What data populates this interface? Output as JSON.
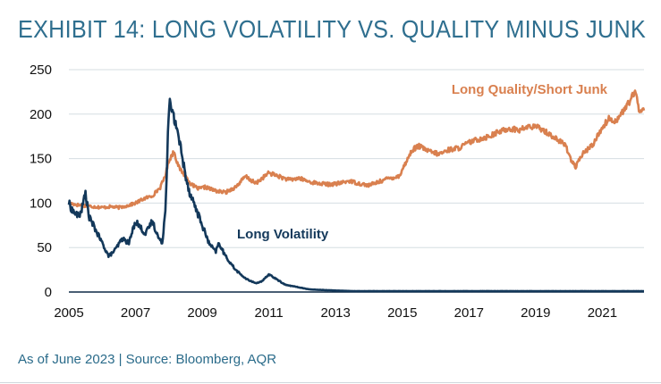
{
  "exhibit": {
    "title": "EXHIBIT 14: LONG VOLATILITY VS. QUALITY MINUS JUNK",
    "source_note": "As of June 2023 | Source: Bloomberg, AQR"
  },
  "colors": {
    "long_quality": "#d9804f",
    "long_volatility": "#13385a",
    "grid": "#d6dde2",
    "axis": "#0e2a47",
    "title": "#2f6f8f"
  },
  "chart_data": {
    "type": "line",
    "title": "EXHIBIT 14: LONG VOLATILITY VS. QUALITY MINUS JUNK",
    "xlabel": "",
    "ylabel": "",
    "xlim": [
      2005,
      2022.25
    ],
    "ylim": [
      0,
      250
    ],
    "y_ticks": [
      "0",
      "50",
      "100",
      "150",
      "200",
      "250"
    ],
    "x_ticks": [
      "2005",
      "2007",
      "2009",
      "2011",
      "2013",
      "2015",
      "2017",
      "2019",
      "2021"
    ],
    "grid": "horizontal",
    "legend": "inline labels",
    "series": [
      {
        "name": "Long Quality/Short Junk",
        "x": [
          2005,
          2005.25,
          2005.5,
          2005.75,
          2006,
          2006.25,
          2006.5,
          2006.75,
          2007,
          2007.25,
          2007.5,
          2007.75,
          2007.9,
          2008,
          2008.15,
          2008.3,
          2008.5,
          2008.7,
          2008.9,
          2009.1,
          2009.3,
          2009.5,
          2009.7,
          2010,
          2010.3,
          2010.6,
          2010.8,
          2011,
          2011.3,
          2011.6,
          2011.9,
          2012.2,
          2012.5,
          2012.8,
          2013.1,
          2013.4,
          2013.7,
          2014,
          2014.3,
          2014.6,
          2014.9,
          2015.1,
          2015.3,
          2015.5,
          2015.8,
          2016.1,
          2016.4,
          2016.7,
          2017,
          2017.3,
          2017.6,
          2017.9,
          2018.2,
          2018.5,
          2018.8,
          2019.1,
          2019.4,
          2019.7,
          2019.9,
          2020.05,
          2020.2,
          2020.4,
          2020.7,
          2021,
          2021.2,
          2021.4,
          2021.6,
          2021.75,
          2021.9,
          2022,
          2022.1,
          2022.25
        ],
        "values": [
          100,
          98,
          97,
          96,
          95,
          96,
          95,
          97,
          100,
          105,
          108,
          118,
          132,
          148,
          158,
          140,
          130,
          120,
          116,
          118,
          115,
          113,
          112,
          118,
          130,
          122,
          128,
          134,
          130,
          126,
          128,
          124,
          122,
          121,
          122,
          125,
          122,
          120,
          124,
          128,
          130,
          145,
          160,
          164,
          158,
          155,
          160,
          162,
          168,
          172,
          175,
          180,
          184,
          182,
          186,
          185,
          178,
          170,
          165,
          150,
          140,
          155,
          165,
          185,
          195,
          192,
          202,
          210,
          220,
          224,
          205,
          205
        ]
      },
      {
        "name": "Long Volatility",
        "x": [
          2005,
          2005.1,
          2005.2,
          2005.3,
          2005.4,
          2005.5,
          2005.6,
          2005.8,
          2006,
          2006.2,
          2006.4,
          2006.6,
          2006.8,
          2007,
          2007.1,
          2007.3,
          2007.5,
          2007.7,
          2007.8,
          2007.9,
          2008,
          2008.1,
          2008.25,
          2008.4,
          2008.6,
          2008.8,
          2009,
          2009.2,
          2009.4,
          2009.5,
          2009.7,
          2010,
          2010.3,
          2010.6,
          2010.8,
          2011,
          2011.2,
          2011.5,
          2011.8,
          2012.2,
          2012.8,
          2013.5,
          2014.5,
          2015.5,
          2016.5,
          2017.5,
          2018.5,
          2019.5,
          2020.5,
          2021.5,
          2022.25
        ],
        "values": [
          100,
          92,
          88,
          85,
          95,
          112,
          85,
          70,
          55,
          40,
          48,
          60,
          55,
          80,
          75,
          65,
          80,
          60,
          55,
          95,
          215,
          200,
          185,
          150,
          115,
          95,
          75,
          55,
          45,
          55,
          40,
          25,
          15,
          10,
          12,
          20,
          15,
          8,
          6,
          3,
          2,
          1,
          1,
          1,
          1,
          1,
          1,
          1,
          1,
          1,
          1
        ]
      }
    ],
    "annotations": [
      "Long Quality/Short Junk",
      "Long Volatility"
    ]
  }
}
